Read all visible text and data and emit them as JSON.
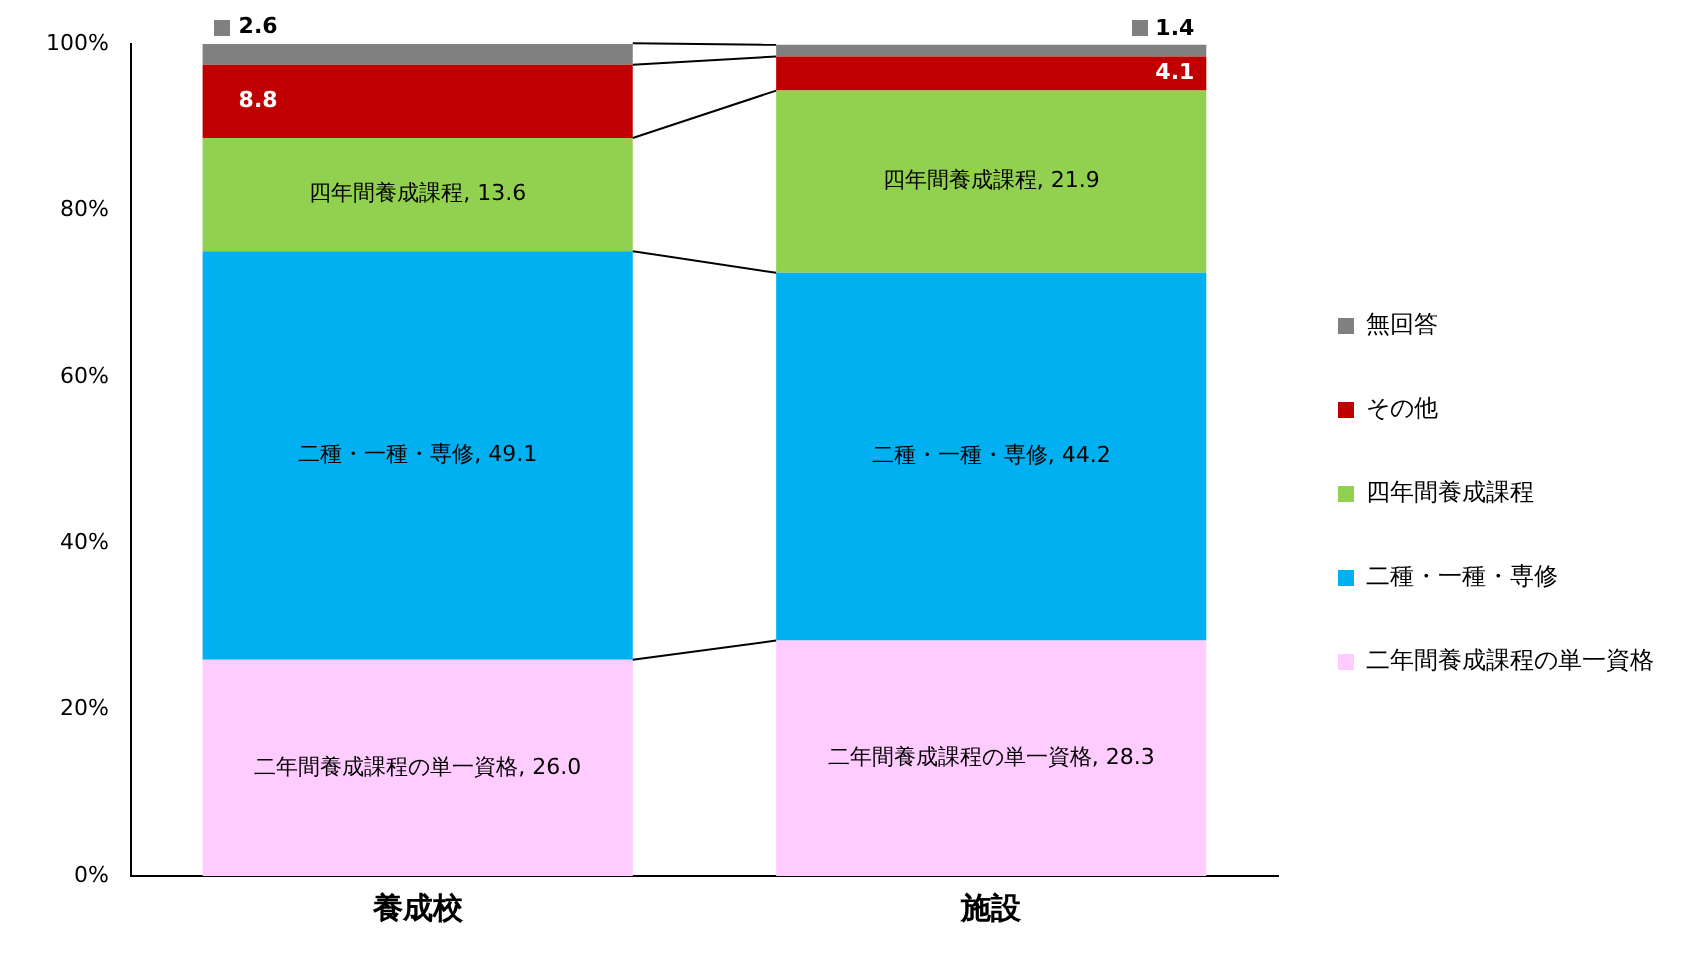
{
  "chart_data": {
    "type": "bar",
    "stacked": true,
    "legend": "right",
    "grid": false,
    "categories": [
      "養成校",
      "施設"
    ],
    "ylim": [
      0,
      100
    ],
    "yticks": [
      {
        "value": 0,
        "label": "0%"
      },
      {
        "value": 20,
        "label": "20%"
      },
      {
        "value": 40,
        "label": "40%"
      },
      {
        "value": 60,
        "label": "60%"
      },
      {
        "value": 80,
        "label": "80%"
      },
      {
        "value": 100,
        "label": "100%"
      }
    ],
    "series": [
      {
        "name": "二年間養成課程の単一資格",
        "color": "#ffccff",
        "values": [
          26.0,
          28.3
        ],
        "value_labels": [
          "二年間養成課程の単一資格, 26.0",
          "二年間養成課程の単一資格, 28.3"
        ]
      },
      {
        "name": "二種・一種・専修",
        "color": "#00b0f0",
        "values": [
          49.1,
          44.2
        ],
        "value_labels": [
          "二種・一種・専修, 49.1",
          "二種・一種・専修, 44.2"
        ]
      },
      {
        "name": "四年間養成課程",
        "color": "#92d050",
        "values": [
          13.6,
          21.9
        ],
        "value_labels": [
          "四年間養成課程, 13.6",
          "四年間養成課程, 21.9"
        ]
      },
      {
        "name": "その他",
        "color": "#c00000",
        "values": [
          8.8,
          4.1
        ],
        "value_labels": [
          "8.8",
          "4.1"
        ]
      },
      {
        "name": "無回答",
        "color": "#808080",
        "values": [
          2.6,
          1.4
        ],
        "value_labels": [
          "2.6",
          "1.4"
        ]
      }
    ]
  }
}
